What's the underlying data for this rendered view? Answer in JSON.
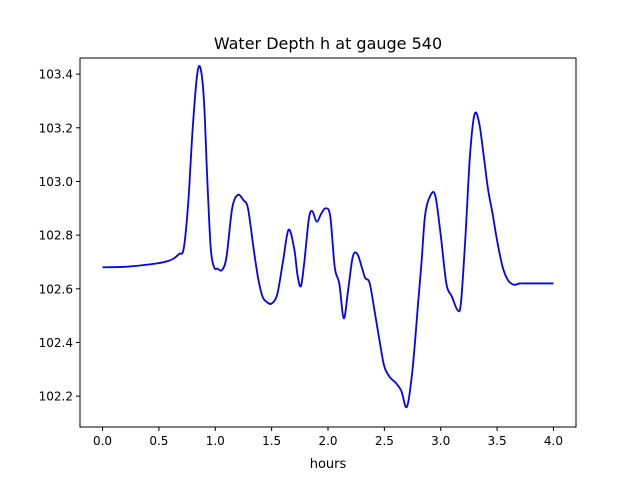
{
  "chart_data": {
    "type": "line",
    "title": "Water Depth h at gauge 540",
    "xlabel": "hours",
    "ylabel": "",
    "xlim": [
      -0.2,
      4.2
    ],
    "ylim": [
      102.085,
      103.46
    ],
    "xticks": [
      0.0,
      0.5,
      1.0,
      1.5,
      2.0,
      2.5,
      3.0,
      3.5,
      4.0
    ],
    "xtick_labels": [
      "0.0",
      "0.5",
      "1.0",
      "1.5",
      "2.0",
      "2.5",
      "3.0",
      "3.5",
      "4.0"
    ],
    "yticks": [
      102.2,
      102.4,
      102.6,
      102.8,
      103.0,
      103.2,
      103.4
    ],
    "ytick_labels": [
      "102.2",
      "102.4",
      "102.6",
      "102.8",
      "103.0",
      "103.2",
      "103.4"
    ],
    "grid": false,
    "legend": "none",
    "series": [
      {
        "color": "#0000ff",
        "x": [
          0.0,
          0.2,
          0.4,
          0.55,
          0.62,
          0.68,
          0.72,
          0.76,
          0.8,
          0.84,
          0.87,
          0.9,
          0.93,
          0.96,
          0.99,
          1.02,
          1.06,
          1.1,
          1.15,
          1.2,
          1.25,
          1.29,
          1.34,
          1.38,
          1.42,
          1.46,
          1.5,
          1.55,
          1.6,
          1.65,
          1.7,
          1.73,
          1.76,
          1.79,
          1.83,
          1.86,
          1.9,
          1.94,
          1.98,
          2.02,
          2.06,
          2.1,
          2.14,
          2.18,
          2.22,
          2.26,
          2.3,
          2.33,
          2.37,
          2.42,
          2.46,
          2.5,
          2.55,
          2.6,
          2.65,
          2.7,
          2.75,
          2.8,
          2.83,
          2.86,
          2.9,
          2.95,
          3.0,
          3.05,
          3.1,
          3.15,
          3.18,
          3.22,
          3.26,
          3.3,
          3.34,
          3.38,
          3.42,
          3.46,
          3.5,
          3.55,
          3.6,
          3.65,
          3.7,
          3.75,
          3.8,
          3.85,
          3.9,
          3.95,
          4.0
        ],
        "y": [
          102.68,
          102.682,
          102.69,
          102.7,
          102.71,
          102.73,
          102.75,
          102.92,
          103.2,
          103.4,
          103.42,
          103.3,
          103.0,
          102.75,
          102.68,
          102.675,
          102.67,
          102.72,
          102.9,
          102.95,
          102.93,
          102.9,
          102.75,
          102.64,
          102.57,
          102.55,
          102.545,
          102.58,
          102.7,
          102.82,
          102.75,
          102.65,
          102.61,
          102.7,
          102.86,
          102.89,
          102.85,
          102.88,
          102.9,
          102.87,
          102.68,
          102.62,
          102.49,
          102.6,
          102.72,
          102.73,
          102.68,
          102.64,
          102.62,
          102.5,
          102.4,
          102.31,
          102.27,
          102.25,
          102.22,
          102.16,
          102.3,
          102.55,
          102.7,
          102.87,
          102.94,
          102.95,
          102.8,
          102.62,
          102.57,
          102.52,
          102.55,
          102.8,
          103.1,
          103.25,
          103.22,
          103.1,
          102.97,
          102.88,
          102.78,
          102.68,
          102.63,
          102.615,
          102.62,
          102.62,
          102.62,
          102.62,
          102.62,
          102.62,
          102.62
        ]
      }
    ]
  }
}
